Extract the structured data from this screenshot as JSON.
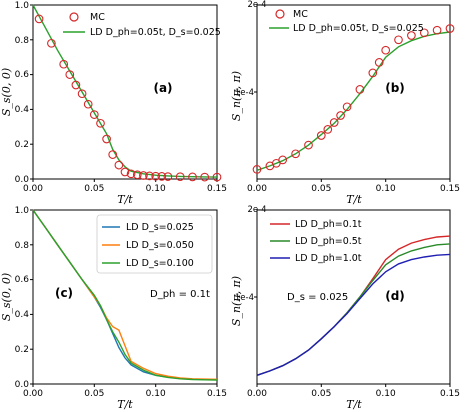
{
  "colors": {
    "mc": "#d62728",
    "ld": "#2ca02c",
    "blue": "#1f77b4",
    "orange": "#ff7f0e",
    "green": "#2ca02c",
    "red": "#d62728",
    "darkgreen": "#2a8a2a",
    "navy": "#1f1fb4"
  },
  "chart_data": [
    {
      "type": "line",
      "panel": "(a)",
      "ylabel": "S_s(0, 0)",
      "xlabel": "T/t",
      "xlim": [
        0.0,
        0.15
      ],
      "ylim": [
        0.0,
        1.0
      ],
      "xticks": [
        "0.00",
        "0.05",
        "0.10",
        "0.15"
      ],
      "yticks": [
        "0.0",
        "0.2",
        "0.4",
        "0.6",
        "0.8",
        "1.0"
      ],
      "grid": false,
      "legend_placement": "top-right",
      "series": [
        {
          "name": "MC",
          "style": "markers",
          "color": "mc",
          "x": [
            0.005,
            0.015,
            0.025,
            0.03,
            0.035,
            0.04,
            0.045,
            0.05,
            0.055,
            0.06,
            0.065,
            0.07,
            0.075,
            0.08,
            0.085,
            0.09,
            0.095,
            0.1,
            0.105,
            0.11,
            0.12,
            0.13,
            0.14,
            0.15
          ],
          "y": [
            0.92,
            0.78,
            0.66,
            0.6,
            0.54,
            0.49,
            0.43,
            0.37,
            0.32,
            0.23,
            0.14,
            0.08,
            0.04,
            0.03,
            0.025,
            0.02,
            0.018,
            0.016,
            0.015,
            0.014,
            0.013,
            0.012,
            0.011,
            0.011
          ]
        },
        {
          "name": "LD D_ph=0.05t, D_s=0.025",
          "style": "line",
          "color": "ld",
          "x": [
            0.0,
            0.01,
            0.02,
            0.03,
            0.04,
            0.05,
            0.06,
            0.065,
            0.07,
            0.075,
            0.08,
            0.09,
            0.1,
            0.11,
            0.12,
            0.13,
            0.14,
            0.15
          ],
          "y": [
            1.0,
            0.87,
            0.74,
            0.62,
            0.5,
            0.38,
            0.26,
            0.17,
            0.11,
            0.07,
            0.045,
            0.03,
            0.022,
            0.018,
            0.015,
            0.013,
            0.012,
            0.011
          ]
        }
      ]
    },
    {
      "type": "line",
      "panel": "(b)",
      "ylabel": "S_n(π, π)",
      "xlabel": "T/t",
      "xlim": [
        0.0,
        0.15
      ],
      "ylim": [
        0.0,
        0.0002
      ],
      "multiplier": "2e-4",
      "xticks": [
        "0.00",
        "0.05",
        "0.10",
        "0.15"
      ],
      "yticks": [
        "1e-4"
      ],
      "grid": false,
      "legend_placement": "top-left",
      "series": [
        {
          "name": "MC",
          "style": "markers",
          "color": "mc",
          "x": [
            0.0,
            0.01,
            0.015,
            0.02,
            0.03,
            0.04,
            0.05,
            0.055,
            0.06,
            0.065,
            0.07,
            0.08,
            0.09,
            0.095,
            0.1,
            0.11,
            0.12,
            0.13,
            0.14,
            0.15
          ],
          "y": [
            1.1e-05,
            1.5e-05,
            1.8e-05,
            2.2e-05,
            2.9e-05,
            3.9e-05,
            5e-05,
            5.7e-05,
            6.5e-05,
            7.3e-05,
            8.3e-05,
            0.000103,
            0.000122,
            0.000134,
            0.000148,
            0.00016,
            0.000165,
            0.000168,
            0.000171,
            0.000173
          ]
        },
        {
          "name": "LD D_ph=0.05t, D_s=0.025",
          "style": "line",
          "color": "ld",
          "x": [
            0.0,
            0.01,
            0.02,
            0.03,
            0.04,
            0.05,
            0.06,
            0.07,
            0.08,
            0.09,
            0.1,
            0.11,
            0.12,
            0.13,
            0.14,
            0.15
          ],
          "y": [
            1e-05,
            1.5e-05,
            2.1e-05,
            2.9e-05,
            3.9e-05,
            5.1e-05,
            6.4e-05,
            8e-05,
            9.8e-05,
            0.000118,
            0.00014,
            0.000152,
            0.000159,
            0.000164,
            0.000167,
            0.000169
          ]
        }
      ]
    },
    {
      "type": "line",
      "panel": "(c)",
      "ylabel": "S_s(0, 0)",
      "xlabel": "T/t",
      "xlim": [
        0.0,
        0.15
      ],
      "ylim": [
        0.0,
        1.0
      ],
      "annotation": "D_ph = 0.1t",
      "xticks": [
        "0.00",
        "0.05",
        "0.10",
        "0.15"
      ],
      "yticks": [
        "0.0",
        "0.2",
        "0.4",
        "0.6",
        "0.8",
        "1.0"
      ],
      "grid": false,
      "legend_placement": "top-right",
      "series": [
        {
          "name": "LD D_s=0.025",
          "style": "line",
          "color": "blue",
          "x": [
            0.0,
            0.01,
            0.02,
            0.03,
            0.04,
            0.05,
            0.055,
            0.06,
            0.065,
            0.07,
            0.075,
            0.08,
            0.09,
            0.1,
            0.11,
            0.12,
            0.13,
            0.14,
            0.15
          ],
          "y": [
            1.0,
            0.9,
            0.8,
            0.7,
            0.6,
            0.5,
            0.44,
            0.37,
            0.29,
            0.21,
            0.15,
            0.11,
            0.07,
            0.05,
            0.04,
            0.033,
            0.028,
            0.026,
            0.025
          ]
        },
        {
          "name": "LD D_s=0.050",
          "style": "line",
          "color": "orange",
          "x": [
            0.0,
            0.01,
            0.02,
            0.03,
            0.04,
            0.05,
            0.055,
            0.06,
            0.065,
            0.07,
            0.075,
            0.08,
            0.09,
            0.1,
            0.11,
            0.12,
            0.13,
            0.14,
            0.15
          ],
          "y": [
            1.0,
            0.9,
            0.8,
            0.7,
            0.6,
            0.5,
            0.45,
            0.38,
            0.33,
            0.31,
            0.22,
            0.13,
            0.09,
            0.06,
            0.045,
            0.035,
            0.03,
            0.028,
            0.027
          ]
        },
        {
          "name": "LD D_s=0.100",
          "style": "line",
          "color": "green",
          "x": [
            0.0,
            0.01,
            0.02,
            0.03,
            0.04,
            0.05,
            0.055,
            0.06,
            0.065,
            0.07,
            0.075,
            0.08,
            0.09,
            0.1,
            0.11,
            0.12,
            0.13,
            0.14,
            0.15
          ],
          "y": [
            1.0,
            0.9,
            0.8,
            0.7,
            0.6,
            0.51,
            0.45,
            0.37,
            0.3,
            0.24,
            0.17,
            0.12,
            0.08,
            0.05,
            0.038,
            0.03,
            0.026,
            0.024,
            0.023
          ]
        }
      ]
    },
    {
      "type": "line",
      "panel": "(d)",
      "ylabel": "S_n(π, π)",
      "xlabel": "T/t",
      "xlim": [
        0.0,
        0.15
      ],
      "ylim": [
        0.0,
        0.0002
      ],
      "multiplier": "2e-4",
      "annotation": "D_s = 0.025",
      "xticks": [
        "0.00",
        "0.05",
        "0.10",
        "0.15"
      ],
      "yticks": [
        "1e-4"
      ],
      "grid": false,
      "legend_placement": "top-left",
      "series": [
        {
          "name": "LD D_ph=0.1t",
          "style": "line",
          "color": "red",
          "x": [
            0.0,
            0.01,
            0.02,
            0.03,
            0.04,
            0.05,
            0.06,
            0.07,
            0.08,
            0.09,
            0.1,
            0.11,
            0.12,
            0.13,
            0.14,
            0.15
          ],
          "y": [
            1e-05,
            1.5e-05,
            2.1e-05,
            2.9e-05,
            3.9e-05,
            5.2e-05,
            6.6e-05,
            8.2e-05,
            0.0001,
            0.000121,
            0.000143,
            0.000155,
            0.000162,
            0.000166,
            0.000169,
            0.00017
          ]
        },
        {
          "name": "LD D_ph=0.5t",
          "style": "line",
          "color": "darkgreen",
          "x": [
            0.0,
            0.01,
            0.02,
            0.03,
            0.04,
            0.05,
            0.06,
            0.07,
            0.08,
            0.09,
            0.1,
            0.11,
            0.12,
            0.13,
            0.14,
            0.15
          ],
          "y": [
            1e-05,
            1.5e-05,
            2.1e-05,
            2.9e-05,
            3.9e-05,
            5.2e-05,
            6.6e-05,
            8.2e-05,
            0.0001,
            0.000119,
            0.000137,
            0.000147,
            0.000153,
            0.000157,
            0.00016,
            0.000161
          ]
        },
        {
          "name": "LD D_ph=1.0t",
          "style": "line",
          "color": "navy",
          "x": [
            0.0,
            0.01,
            0.02,
            0.03,
            0.04,
            0.05,
            0.06,
            0.07,
            0.08,
            0.09,
            0.1,
            0.11,
            0.12,
            0.13,
            0.14,
            0.15
          ],
          "y": [
            1e-05,
            1.5e-05,
            2.1e-05,
            2.9e-05,
            3.9e-05,
            5.2e-05,
            6.6e-05,
            8.1e-05,
            9.8e-05,
            0.000115,
            0.000129,
            0.000138,
            0.000143,
            0.000146,
            0.000148,
            0.000149
          ]
        }
      ]
    }
  ]
}
